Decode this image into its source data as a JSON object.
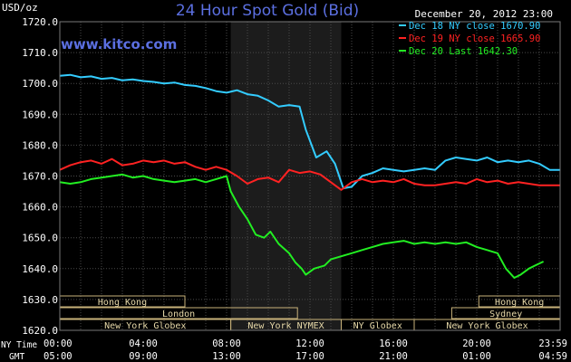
{
  "header": {
    "unit": "USD/oz",
    "title": "24 Hour Spot Gold (Bid)",
    "date": "December 20, 2012 23:00",
    "watermark": "www.kitco.com"
  },
  "colors": {
    "background": "#000000",
    "plot_background": "#000000",
    "night_band": "#1c1c1c",
    "grid": "#4a4a4a",
    "axis_text": "#ffffff",
    "title": "#5b6fe0",
    "watermark": "#5b6fe0",
    "session_border": "#c8b27a",
    "session_text": "#e6d8a8"
  },
  "time_axis": {
    "ny_label": "NY Time",
    "gmt_label": "GMT",
    "ny_ticks": [
      "00:00",
      "04:00",
      "08:00",
      "12:00",
      "16:00",
      "20:00",
      "23:59"
    ],
    "gmt_ticks": [
      "05:00",
      "09:00",
      "13:00",
      "17:00",
      "21:00",
      "01:00",
      "04:59"
    ]
  },
  "sessions": [
    {
      "name": "Hong Kong",
      "start": 0,
      "end": 6,
      "row": 0
    },
    {
      "name": "Hong Kong",
      "start": 20.1,
      "end": 24,
      "row": 0
    },
    {
      "name": "London",
      "start": 0,
      "end": 11.4,
      "row": 1
    },
    {
      "name": "Sydney",
      "start": 18.8,
      "end": 24,
      "row": 1
    },
    {
      "name": "New York Globex",
      "start": 0,
      "end": 8.2,
      "row": 2
    },
    {
      "name": "New York NYMEX",
      "start": 8.2,
      "end": 13.5,
      "row": 2
    },
    {
      "name": "NY Globex",
      "start": 13.5,
      "end": 17,
      "row": 2
    },
    {
      "name": "New York Globex",
      "start": 17,
      "end": 24,
      "row": 2
    }
  ],
  "chart_data": {
    "type": "line",
    "title": "24 Hour Spot Gold (Bid)",
    "ylabel": "USD/oz",
    "xlabel": "",
    "ylim": [
      1620,
      1720
    ],
    "yticks": [
      "1620.0",
      "1630.0",
      "1640.0",
      "1650.0",
      "1660.0",
      "1670.0",
      "1680.0",
      "1690.0",
      "1700.0",
      "1710.0",
      "1720.0"
    ],
    "xlim": [
      0,
      24
    ],
    "x_unit": "hours (NY time)",
    "highlight_band": [
      8.2,
      13.5
    ],
    "grid": true,
    "legend_position": "top-right",
    "series": [
      {
        "name": "Dec 18 NY close 1670.90",
        "color": "#33ccff",
        "points": [
          [
            0,
            1702.5
          ],
          [
            0.5,
            1702.8
          ],
          [
            1,
            1702
          ],
          [
            1.5,
            1702.3
          ],
          [
            2,
            1701.5
          ],
          [
            2.5,
            1701.8
          ],
          [
            3,
            1701
          ],
          [
            3.5,
            1701.3
          ],
          [
            4,
            1700.8
          ],
          [
            4.5,
            1700.5
          ],
          [
            5,
            1700
          ],
          [
            5.5,
            1700.3
          ],
          [
            6,
            1699.5
          ],
          [
            6.5,
            1699.2
          ],
          [
            7,
            1698.5
          ],
          [
            7.5,
            1697.5
          ],
          [
            8,
            1697
          ],
          [
            8.5,
            1697.8
          ],
          [
            9,
            1696.5
          ],
          [
            9.5,
            1696
          ],
          [
            10,
            1694.5
          ],
          [
            10.5,
            1692.5
          ],
          [
            11,
            1693
          ],
          [
            11.5,
            1692.5
          ],
          [
            11.8,
            1685
          ],
          [
            12.3,
            1676
          ],
          [
            12.8,
            1678
          ],
          [
            13.2,
            1674
          ],
          [
            13.6,
            1666
          ],
          [
            14,
            1666.5
          ],
          [
            14.5,
            1670
          ],
          [
            15,
            1671
          ],
          [
            15.5,
            1672.5
          ],
          [
            16,
            1672
          ],
          [
            16.5,
            1671.5
          ],
          [
            17,
            1672
          ],
          [
            17.5,
            1672.5
          ],
          [
            18,
            1672
          ],
          [
            18.5,
            1675
          ],
          [
            19,
            1676
          ],
          [
            19.5,
            1675.5
          ],
          [
            20,
            1675
          ],
          [
            20.5,
            1676
          ],
          [
            21,
            1674.5
          ],
          [
            21.5,
            1675
          ],
          [
            22,
            1674.5
          ],
          [
            22.5,
            1675
          ],
          [
            23,
            1674
          ],
          [
            23.5,
            1672
          ],
          [
            24,
            1672
          ]
        ]
      },
      {
        "name": "Dec 19 NY close 1665.90",
        "color": "#ff2222",
        "points": [
          [
            0,
            1672
          ],
          [
            0.5,
            1673.5
          ],
          [
            1,
            1674.5
          ],
          [
            1.5,
            1675
          ],
          [
            2,
            1674
          ],
          [
            2.5,
            1675.5
          ],
          [
            3,
            1673.5
          ],
          [
            3.5,
            1674
          ],
          [
            4,
            1675
          ],
          [
            4.5,
            1674.5
          ],
          [
            5,
            1675
          ],
          [
            5.5,
            1674
          ],
          [
            6,
            1674.5
          ],
          [
            6.5,
            1673
          ],
          [
            7,
            1672
          ],
          [
            7.5,
            1673
          ],
          [
            8,
            1672
          ],
          [
            8.5,
            1670
          ],
          [
            9,
            1667.5
          ],
          [
            9.5,
            1669
          ],
          [
            10,
            1669.5
          ],
          [
            10.5,
            1668
          ],
          [
            11,
            1672
          ],
          [
            11.5,
            1671
          ],
          [
            12,
            1671.5
          ],
          [
            12.5,
            1670.5
          ],
          [
            13,
            1668
          ],
          [
            13.5,
            1665.5
          ],
          [
            14,
            1668
          ],
          [
            14.5,
            1669
          ],
          [
            15,
            1668
          ],
          [
            15.5,
            1668.5
          ],
          [
            16,
            1668
          ],
          [
            16.5,
            1669
          ],
          [
            17,
            1667.5
          ],
          [
            17.5,
            1667
          ],
          [
            18,
            1667
          ],
          [
            18.5,
            1667.5
          ],
          [
            19,
            1668
          ],
          [
            19.5,
            1667.5
          ],
          [
            20,
            1669
          ],
          [
            20.5,
            1668
          ],
          [
            21,
            1668.5
          ],
          [
            21.5,
            1667.5
          ],
          [
            22,
            1668
          ],
          [
            22.5,
            1667.5
          ],
          [
            23,
            1667
          ],
          [
            23.5,
            1667
          ],
          [
            24,
            1667
          ]
        ]
      },
      {
        "name": "Dec 20 Last 1642.30",
        "color": "#22ee22",
        "points": [
          [
            0,
            1668
          ],
          [
            0.5,
            1667.5
          ],
          [
            1,
            1668
          ],
          [
            1.5,
            1669
          ],
          [
            2,
            1669.5
          ],
          [
            2.5,
            1670
          ],
          [
            3,
            1670.5
          ],
          [
            3.5,
            1669.5
          ],
          [
            4,
            1670
          ],
          [
            4.5,
            1669
          ],
          [
            5,
            1668.5
          ],
          [
            5.5,
            1668
          ],
          [
            6,
            1668.5
          ],
          [
            6.5,
            1669
          ],
          [
            7,
            1668
          ],
          [
            7.5,
            1669
          ],
          [
            8,
            1670
          ],
          [
            8.2,
            1665
          ],
          [
            8.6,
            1660
          ],
          [
            9,
            1656
          ],
          [
            9.4,
            1651
          ],
          [
            9.8,
            1650
          ],
          [
            10.1,
            1652
          ],
          [
            10.5,
            1648
          ],
          [
            11,
            1645
          ],
          [
            11.3,
            1642
          ],
          [
            11.6,
            1640
          ],
          [
            11.8,
            1638
          ],
          [
            12.2,
            1640
          ],
          [
            12.7,
            1641
          ],
          [
            13,
            1643
          ],
          [
            13.5,
            1644
          ],
          [
            14,
            1645
          ],
          [
            14.5,
            1646
          ],
          [
            15,
            1647
          ],
          [
            15.5,
            1648
          ],
          [
            16,
            1648.5
          ],
          [
            16.5,
            1649
          ],
          [
            17,
            1648
          ],
          [
            17.5,
            1648.5
          ],
          [
            18,
            1648
          ],
          [
            18.5,
            1648.5
          ],
          [
            19,
            1648
          ],
          [
            19.5,
            1648.5
          ],
          [
            20,
            1647
          ],
          [
            20.5,
            1646
          ],
          [
            21,
            1645
          ],
          [
            21.4,
            1640
          ],
          [
            21.8,
            1637
          ],
          [
            22.1,
            1638
          ],
          [
            22.5,
            1640
          ],
          [
            22.8,
            1641
          ],
          [
            23.2,
            1642.3
          ]
        ]
      }
    ]
  }
}
